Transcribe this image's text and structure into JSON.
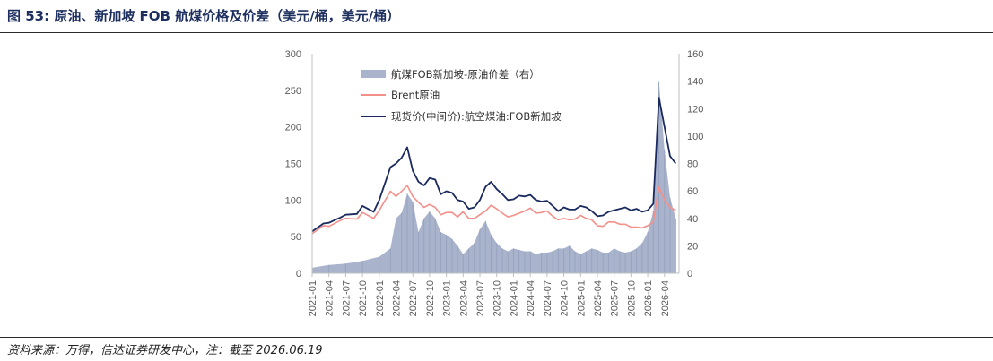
{
  "header": {
    "title": "图 53:  原油、新加坡 FOB 航煤价格及价差（美元/桶，美元/桶）"
  },
  "footer": {
    "source": "资料来源：万得，信达证券研发中心，注：截至 2026.06.19"
  },
  "colors": {
    "spread": "#a9b4cc",
    "brent": "#f4908a",
    "jet": "#1b2a5e",
    "axis": "#bfbfbf",
    "title": "#1d2f5f"
  },
  "chart_data": {
    "type": "line",
    "legend": [
      "航煤FOB新加坡-原油价差（右）",
      "Brent原油",
      "现货价(中间价):航空煤油:FOB新加坡"
    ],
    "legend_position": "top-left (inside plot)",
    "grid": false,
    "x_tick_labels": [
      "2021-01",
      "2021-04",
      "2021-07",
      "2021-10",
      "2022-01",
      "2022-04",
      "2022-07",
      "2022-10",
      "2023-01",
      "2023-04",
      "2023-07",
      "2023-10",
      "2024-01",
      "2024-04",
      "2024-07",
      "2024-10",
      "2025-01",
      "2025-04",
      "2025-07",
      "2025-10",
      "2026-01",
      "2026-04"
    ],
    "y_left_ticks": [
      0,
      50,
      100,
      150,
      200,
      250,
      300
    ],
    "y_right_ticks": [
      0,
      20,
      40,
      60,
      80,
      100,
      120,
      140,
      160
    ],
    "ylim_left": [
      0,
      300
    ],
    "ylim_right": [
      0,
      160
    ],
    "series": [
      {
        "name": "航煤FOB新加坡-原油价差（右）",
        "kind": "area",
        "axis": "right",
        "x": [
          "2021-01",
          "2021-04",
          "2021-07",
          "2021-10",
          "2022-01",
          "2022-03",
          "2022-04",
          "2022-05",
          "2022-06",
          "2022-07",
          "2022-08",
          "2022-09",
          "2022-10",
          "2022-11",
          "2022-12",
          "2023-01",
          "2023-02",
          "2023-03",
          "2023-04",
          "2023-05",
          "2023-06",
          "2023-07",
          "2023-08",
          "2023-09",
          "2023-10",
          "2023-11",
          "2023-12",
          "2024-01",
          "2024-02",
          "2024-03",
          "2024-04",
          "2024-05",
          "2024-06",
          "2024-07",
          "2024-08",
          "2024-09",
          "2024-10",
          "2024-11",
          "2024-12",
          "2025-01",
          "2025-02",
          "2025-03",
          "2025-04",
          "2025-05",
          "2025-06",
          "2025-07",
          "2025-08",
          "2025-09",
          "2025-10",
          "2025-11",
          "2025-12",
          "2026-01",
          "2026-02",
          "2026-03",
          "2026-04",
          "2026-05",
          "2026-06"
        ],
        "values": [
          4,
          6,
          7,
          9,
          12,
          18,
          40,
          44,
          58,
          52,
          30,
          40,
          45,
          40,
          30,
          28,
          25,
          20,
          14,
          18,
          22,
          32,
          38,
          28,
          22,
          18,
          16,
          18,
          17,
          16,
          16,
          14,
          15,
          15,
          16,
          18,
          18,
          20,
          16,
          14,
          16,
          18,
          17,
          15,
          15,
          18,
          16,
          15,
          16,
          18,
          22,
          30,
          45,
          140,
          90,
          55,
          40
        ]
      },
      {
        "name": "Brent原油",
        "kind": "line",
        "axis": "left",
        "x": [
          "2021-01",
          "2021-03",
          "2021-04",
          "2021-06",
          "2021-07",
          "2021-09",
          "2021-10",
          "2021-12",
          "2022-01",
          "2022-03",
          "2022-04",
          "2022-05",
          "2022-06",
          "2022-07",
          "2022-08",
          "2022-09",
          "2022-10",
          "2022-11",
          "2022-12",
          "2023-01",
          "2023-02",
          "2023-03",
          "2023-04",
          "2023-05",
          "2023-06",
          "2023-07",
          "2023-08",
          "2023-09",
          "2023-10",
          "2023-11",
          "2023-12",
          "2024-01",
          "2024-02",
          "2024-03",
          "2024-04",
          "2024-05",
          "2024-06",
          "2024-07",
          "2024-08",
          "2024-09",
          "2024-10",
          "2024-11",
          "2024-12",
          "2025-01",
          "2025-02",
          "2025-03",
          "2025-04",
          "2025-05",
          "2025-06",
          "2025-07",
          "2025-08",
          "2025-09",
          "2025-10",
          "2025-11",
          "2025-12",
          "2026-01",
          "2026-02",
          "2026-03",
          "2026-04",
          "2026-05",
          "2026-06"
        ],
        "values": [
          54,
          65,
          64,
          72,
          75,
          74,
          83,
          75,
          86,
          112,
          105,
          112,
          120,
          105,
          97,
          90,
          94,
          90,
          80,
          83,
          83,
          77,
          84,
          75,
          75,
          80,
          85,
          93,
          88,
          82,
          77,
          79,
          82,
          85,
          89,
          82,
          83,
          85,
          78,
          73,
          75,
          73,
          74,
          79,
          75,
          73,
          65,
          64,
          70,
          70,
          67,
          67,
          63,
          63,
          62,
          65,
          70,
          118,
          100,
          90,
          86
        ]
      },
      {
        "name": "现货价(中间价):航空煤油:FOB新加坡",
        "kind": "line",
        "axis": "left",
        "x": [
          "2021-01",
          "2021-03",
          "2021-04",
          "2021-06",
          "2021-07",
          "2021-09",
          "2021-10",
          "2021-12",
          "2022-01",
          "2022-03",
          "2022-04",
          "2022-05",
          "2022-06",
          "2022-07",
          "2022-08",
          "2022-09",
          "2022-10",
          "2022-11",
          "2022-12",
          "2023-01",
          "2023-02",
          "2023-03",
          "2023-04",
          "2023-05",
          "2023-06",
          "2023-07",
          "2023-08",
          "2023-09",
          "2023-10",
          "2023-11",
          "2023-12",
          "2024-01",
          "2024-02",
          "2024-03",
          "2024-04",
          "2024-05",
          "2024-06",
          "2024-07",
          "2024-08",
          "2024-09",
          "2024-10",
          "2024-11",
          "2024-12",
          "2025-01",
          "2025-02",
          "2025-03",
          "2025-04",
          "2025-05",
          "2025-06",
          "2025-07",
          "2025-08",
          "2025-09",
          "2025-10",
          "2025-11",
          "2025-12",
          "2026-01",
          "2026-02",
          "2026-03",
          "2026-04",
          "2026-05",
          "2026-06"
        ],
        "values": [
          57,
          68,
          69,
          76,
          80,
          81,
          92,
          84,
          100,
          145,
          150,
          158,
          172,
          140,
          125,
          120,
          130,
          128,
          108,
          112,
          110,
          100,
          98,
          88,
          90,
          100,
          118,
          125,
          115,
          108,
          100,
          101,
          106,
          105,
          107,
          100,
          98,
          99,
          92,
          85,
          90,
          87,
          87,
          92,
          90,
          85,
          78,
          79,
          84,
          86,
          88,
          90,
          86,
          88,
          84,
          86,
          95,
          240,
          200,
          160,
          150
        ]
      }
    ]
  }
}
